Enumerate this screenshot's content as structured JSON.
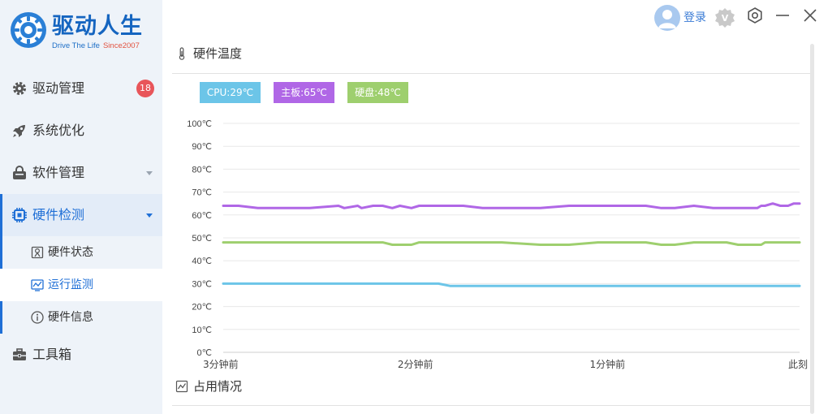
{
  "app": {
    "title": "驱动人生",
    "subtitle": "Drive The Life",
    "since": "Since2007"
  },
  "header": {
    "login_label": "登录",
    "icons": [
      "avatar-icon",
      "vip-icon",
      "settings-icon",
      "minimize-icon",
      "close-icon"
    ]
  },
  "sidebar": {
    "items": [
      {
        "label": "驱动管理",
        "icon": "gear-icon",
        "badge": "18"
      },
      {
        "label": "系统优化",
        "icon": "rocket-icon"
      },
      {
        "label": "软件管理",
        "icon": "bag-icon"
      },
      {
        "label": "硬件检测",
        "icon": "chip-icon"
      },
      {
        "label": "工具箱",
        "icon": "toolbox-icon"
      }
    ],
    "subitems": [
      {
        "label": "硬件状态",
        "icon": "device-icon"
      },
      {
        "label": "运行监测",
        "icon": "monitor-icon"
      },
      {
        "label": "硬件信息",
        "icon": "info-icon"
      }
    ]
  },
  "panel": {
    "temperature_title": "硬件温度",
    "usage_title": "占用情况"
  },
  "colors": {
    "cpu": "#6cc5e8",
    "board": "#b067e6",
    "disk": "#9ecf6e",
    "accent": "#1f6fd6"
  },
  "chart_data": {
    "type": "line",
    "legend": [
      "CPU:29℃",
      "主板:65℃",
      "硬盘:48℃"
    ],
    "x_labels": [
      "3分钟前",
      "2分钟前",
      "1分钟前",
      "此刻"
    ],
    "y_ticks": [
      "0℃",
      "10℃",
      "20℃",
      "30℃",
      "40℃",
      "50℃",
      "60℃",
      "70℃",
      "80℃",
      "90℃",
      "100℃"
    ],
    "ylim": [
      0,
      100
    ],
    "x_minutes_ago": [
      3.0,
      2.92,
      2.82,
      2.55,
      2.4,
      2.37,
      2.3,
      2.28,
      2.22,
      2.17,
      2.12,
      2.08,
      2.02,
      1.98,
      1.92,
      1.88,
      1.82,
      1.75,
      1.65,
      1.55,
      1.35,
      1.2,
      1.05,
      0.95,
      0.9,
      0.8,
      0.72,
      0.65,
      0.55,
      0.45,
      0.38,
      0.32,
      0.22,
      0.2,
      0.18,
      0.14,
      0.1,
      0.06,
      0.03,
      0.0
    ],
    "series": [
      {
        "name": "CPU",
        "values": [
          30,
          30,
          30,
          30,
          30,
          30,
          30,
          30,
          30,
          30,
          30,
          30,
          30,
          30,
          30,
          30,
          29,
          29,
          29,
          29,
          29,
          29,
          29,
          29,
          29,
          29,
          29,
          29,
          29,
          29,
          29,
          29,
          29,
          29,
          29,
          29,
          29,
          29,
          29,
          29
        ]
      },
      {
        "name": "主板",
        "values": [
          64,
          64,
          63,
          63,
          64,
          63,
          64,
          63,
          64,
          64,
          63,
          64,
          63,
          64,
          64,
          64,
          64,
          64,
          63,
          63,
          63,
          64,
          64,
          64,
          64,
          64,
          63,
          63,
          64,
          63,
          63,
          63,
          63,
          64,
          64,
          65,
          64,
          64,
          65,
          65
        ]
      },
      {
        "name": "硬盘",
        "values": [
          48,
          48,
          48,
          48,
          48,
          48,
          48,
          48,
          48,
          48,
          47,
          47,
          47,
          48,
          48,
          48,
          48,
          48,
          48,
          48,
          47,
          47,
          48,
          48,
          48,
          48,
          47,
          47,
          48,
          48,
          48,
          47,
          47,
          47,
          48,
          48,
          48,
          48,
          48,
          48
        ]
      }
    ]
  }
}
